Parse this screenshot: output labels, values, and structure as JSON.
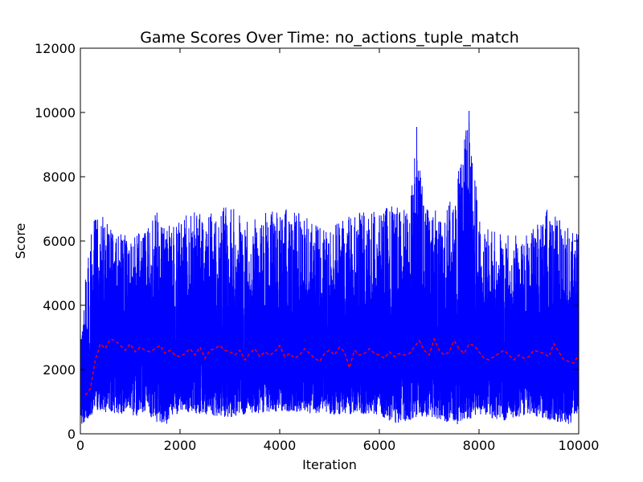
{
  "chart_data": {
    "type": "line",
    "title": "Game Scores Over Time: no_actions_tuple_match",
    "xlabel": "Iteration",
    "ylabel": "Score",
    "xlim": [
      0,
      10000
    ],
    "ylim": [
      0,
      12000
    ],
    "xticks": [
      0,
      2000,
      4000,
      6000,
      8000,
      10000
    ],
    "yticks": [
      0,
      2000,
      4000,
      6000,
      8000,
      10000,
      12000
    ],
    "grid": false,
    "legend": "none",
    "series": [
      {
        "kind": "raw",
        "color": "#0000ff",
        "style": "solid",
        "x_range": [
          0,
          10000
        ],
        "count": 10000,
        "typical_range": [
          500,
          5500
        ],
        "max_envelope": [
          [
            0,
            2800
          ],
          [
            150,
            5900
          ],
          [
            350,
            7050
          ],
          [
            600,
            6500
          ],
          [
            1000,
            6200
          ],
          [
            1300,
            6300
          ],
          [
            1500,
            7000
          ],
          [
            1700,
            6400
          ],
          [
            2200,
            6900
          ],
          [
            2500,
            6950
          ],
          [
            3000,
            7100
          ],
          [
            3400,
            6600
          ],
          [
            3700,
            6900
          ],
          [
            4200,
            7000
          ],
          [
            4500,
            6800
          ],
          [
            4900,
            6600
          ],
          [
            5300,
            6700
          ],
          [
            5700,
            7050
          ],
          [
            6000,
            6900
          ],
          [
            6300,
            7350
          ],
          [
            6600,
            6800
          ],
          [
            6750,
            9550
          ],
          [
            6900,
            7000
          ],
          [
            7300,
            7000
          ],
          [
            7500,
            7400
          ],
          [
            7800,
            10050
          ],
          [
            8000,
            6800
          ],
          [
            8300,
            6300
          ],
          [
            8700,
            6200
          ],
          [
            9000,
            6200
          ],
          [
            9400,
            7050
          ],
          [
            9700,
            6500
          ],
          [
            10000,
            6400
          ]
        ],
        "min_envelope": [
          [
            0,
            250
          ],
          [
            300,
            700
          ],
          [
            1000,
            600
          ],
          [
            1700,
            250
          ],
          [
            2000,
            700
          ],
          [
            3000,
            500
          ],
          [
            4000,
            700
          ],
          [
            5000,
            600
          ],
          [
            6000,
            600
          ],
          [
            6300,
            300
          ],
          [
            7000,
            550
          ],
          [
            7500,
            250
          ],
          [
            8000,
            600
          ],
          [
            8500,
            350
          ],
          [
            9000,
            600
          ],
          [
            9800,
            250
          ],
          [
            10000,
            700
          ]
        ]
      },
      {
        "kind": "moving-average",
        "color": "#ff0000",
        "style": "dashed",
        "x": [
          100,
          200,
          300,
          400,
          500,
          600,
          700,
          800,
          900,
          1000,
          1100,
          1200,
          1300,
          1400,
          1500,
          1600,
          1700,
          1800,
          1900,
          2000,
          2100,
          2200,
          2300,
          2400,
          2500,
          2600,
          2700,
          2800,
          2900,
          3000,
          3100,
          3200,
          3300,
          3400,
          3500,
          3600,
          3700,
          3800,
          3900,
          4000,
          4100,
          4200,
          4300,
          4400,
          4500,
          4600,
          4700,
          4800,
          4900,
          5000,
          5100,
          5200,
          5300,
          5400,
          5500,
          5600,
          5700,
          5800,
          5900,
          6000,
          6100,
          6200,
          6300,
          6400,
          6500,
          6600,
          6700,
          6800,
          6900,
          7000,
          7100,
          7200,
          7300,
          7400,
          7500,
          7600,
          7700,
          7800,
          7900,
          8000,
          8100,
          8200,
          8300,
          8400,
          8500,
          8600,
          8700,
          8800,
          8900,
          9000,
          9100,
          9200,
          9300,
          9400,
          9500,
          9600,
          9700,
          9800,
          9900,
          10000
        ],
        "y": [
          1200,
          1400,
          2300,
          2800,
          2650,
          2950,
          2900,
          2750,
          2600,
          2800,
          2550,
          2700,
          2600,
          2550,
          2650,
          2750,
          2500,
          2600,
          2450,
          2400,
          2500,
          2650,
          2450,
          2700,
          2350,
          2600,
          2650,
          2750,
          2600,
          2550,
          2450,
          2600,
          2300,
          2500,
          2650,
          2400,
          2550,
          2450,
          2550,
          2750,
          2400,
          2500,
          2350,
          2450,
          2650,
          2500,
          2350,
          2250,
          2500,
          2600,
          2450,
          2700,
          2550,
          2050,
          2600,
          2450,
          2500,
          2650,
          2500,
          2450,
          2350,
          2550,
          2400,
          2500,
          2450,
          2500,
          2700,
          2900,
          2600,
          2450,
          2950,
          2600,
          2450,
          2550,
          2900,
          2650,
          2500,
          2800,
          2750,
          2550,
          2350,
          2300,
          2400,
          2500,
          2600,
          2450,
          2300,
          2450,
          2350,
          2400,
          2600,
          2550,
          2500,
          2400,
          2800,
          2550,
          2300,
          2250,
          2200,
          2450
        ]
      }
    ]
  }
}
